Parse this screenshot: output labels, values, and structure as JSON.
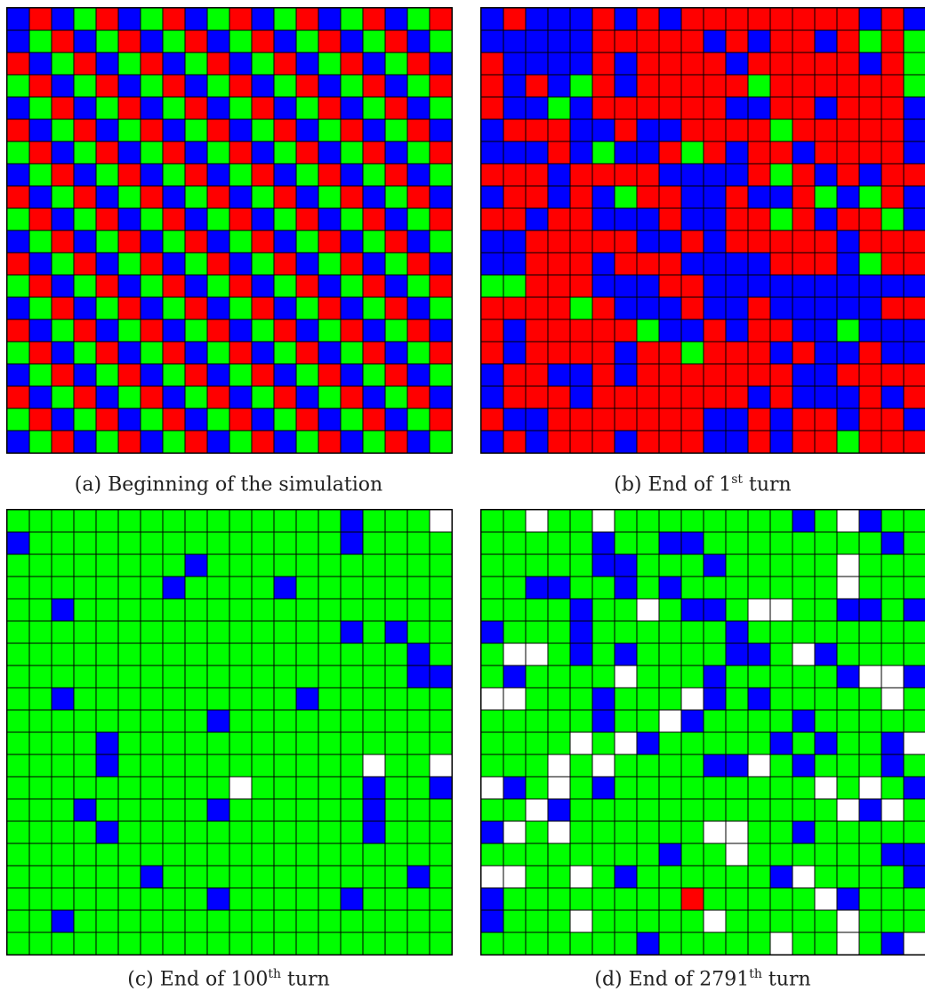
{
  "palette": {
    "R": "#ff0000",
    "G": "#00ff00",
    "B": "#0000ff",
    "W": "#ffffff",
    "grid_line": "#000000"
  },
  "panels": [
    {
      "id": "a",
      "caption": {
        "prefix": "(a) Beginning of the simulation",
        "sup": "",
        "suffix": ""
      },
      "rows": [
        "BRBGRBGRBGRBGRBGRBGR",
        "BGRBGRBGRBGRBGRBGRBG",
        "RBGRBGRBGRBGRBGRBGRB",
        "GRBGRBGRBGRBGRBGRBGR",
        "BGRBGRBGRBGRBGRBGRBG",
        "RBGRBGRBGRBGRBGRBGRB",
        "GRBGRBGRBGRBGRBGRBGR",
        "BGRBGRBGRBGRBGRBGRBG",
        "RBGRBGRBGRBGRBGRBGRB",
        "GRBGRBGRBGRBGRBGRBGR",
        "BGRBGRBGRBGRBGRBGRBG",
        "RBGRBGRBGRBGRBGRBGRB",
        "GRBGRBGRBGRBGRBGRBGR",
        "BGRBGRBGRBGRBGRBGRBG",
        "RBGRBGRBGRBGRBGRBGRB",
        "GRBGRBGRBGRBGRBGRBGR",
        "BGRBGRBGRBGRBGRBGRBG",
        "RBGRBGRBGRBGRBGRBGRB",
        "GRBGRBGRBGRBGRBGRBGR",
        "BGRBGRBGRBGRBGRBGRBG"
      ]
    },
    {
      "id": "b",
      "caption": {
        "prefix": "(b) End of 1",
        "sup": "st",
        "suffix": " turn"
      },
      "rows": [
        "BRBBBRBRBRRRRRRRRBRB",
        "BBBBBRRRRRBRBRRBRGRG",
        "RBBBBRBRRRRBRRRRRBRG",
        "RBRBGRBRRRRRGRRRRRRG",
        "RBBGBRRRRRRBBRRBRRRB",
        "BRRRBBRBBRRRRGRRRRRB",
        "BBBRBGBBRGRBRRBRRRRB",
        "RRRBRRRRBBBBRGRBRBRR",
        "BRRBRBGRRBBRBBRGBGRB",
        "RRBRRBBBRBBRRGRBRRGB",
        "BBRRRRRBBRBRRRRRBRRR",
        "BBRRRBRRRBBBBRRRBGRR",
        "GGRRRBBBRRBBBBBBBBBB",
        "RRRRGRBBBRBBRBBBBBRR",
        "RBRRRRRGBBRBRRBBGBBB",
        "RBRRRRBRRGRRRBRBBRBB",
        "BRRBBRBRRRRRRRBBRRRR",
        "BRRRBRRRRRRRBRBBBRBR",
        "RBBRRRRRRRBBRBRRBRRB",
        "BRBRRRBRRRBBRBRRGRRR"
      ]
    },
    {
      "id": "c",
      "caption": {
        "prefix": "(c) End of 100",
        "sup": "th",
        "suffix": " turn"
      },
      "rows": [
        "GGGGGGGGGGGGGGGBGGGW",
        "BGGGGGGGGGGGGGGBGGGG",
        "GGGGGGGGBGGGGGGGGGGG",
        "GGGGGGGBGGGGBGGGGGGG",
        "GGBGGGGGGGGGGGGGGGGG",
        "GGGGGGGGGGGGGGGBGBGG",
        "GGGGGGGGGGGGGGGGGGBG",
        "GGGGGGGGGGGGGGGGGGBB",
        "GGBGGGGGGGGGGBGGGGGG",
        "GGGGGGGGGBGGGGGGGGGG",
        "GGGGBGGGGGGGGGGGGGGG",
        "GGGGBGGGGGGGGGGGWGGW",
        "GGGGGGGGGGWGGGGGBGGB",
        "GGGBGGGGGBGGGGGGBGGG",
        "GGGGBGGGGGGGGGGGBGGG",
        "GGGGGGGGGGGGGGGGGGGG",
        "GGGGGGBGGGGGGGGGGGBG",
        "GGGGGGGGGBGGGGGBGGGG",
        "GGBGGGGGGGGGGGGGGGGG",
        "GGGGGGGGGGGGGGGGGGGG"
      ]
    },
    {
      "id": "d",
      "caption": {
        "prefix": "(d) End of 2791",
        "sup": "th",
        "suffix": " turn"
      },
      "rows": [
        "GGWGGWGGGGGGGGBGWBGG",
        "GGGGGBGGBBGGGGGGGGBG",
        "GGGGGBBGGGBGGGGGWGGG",
        "GGBBGGBGBGGGGGGGWGGG",
        "GGGGBGGWGBBGWWGGBBGB",
        "BGGGBGGGGGGBGGGGGGGG",
        "GWWGBGBGGGGBBGWBGGGG",
        "GBGGGGWGGGBGGGGGBWWB",
        "WWGGGBGGGWBGBGGGGGWG",
        "GGGGGBGGWBGGGGBGGGGG",
        "GGGGWGWBGGGGGBGBGGBW",
        "GGGWGWGGGGBBWGBGGGBG",
        "WBGWGBGGGGGGGGGWGWGB",
        "GGWBGGGGGGGGGGGGWBWG",
        "BWGWGGGGGGWWGGBGGGGG",
        "GGGGGGGGBGGWGGGGGGBB",
        "WWGGWGBGGGGGGBWGGGGB",
        "BGGGGGGGGRGGGGGWBGGG",
        "BGGGWGGGGGWGGGGGWGGG",
        "GGGGGGGBGGGGGWGGWGBW"
      ]
    }
  ]
}
